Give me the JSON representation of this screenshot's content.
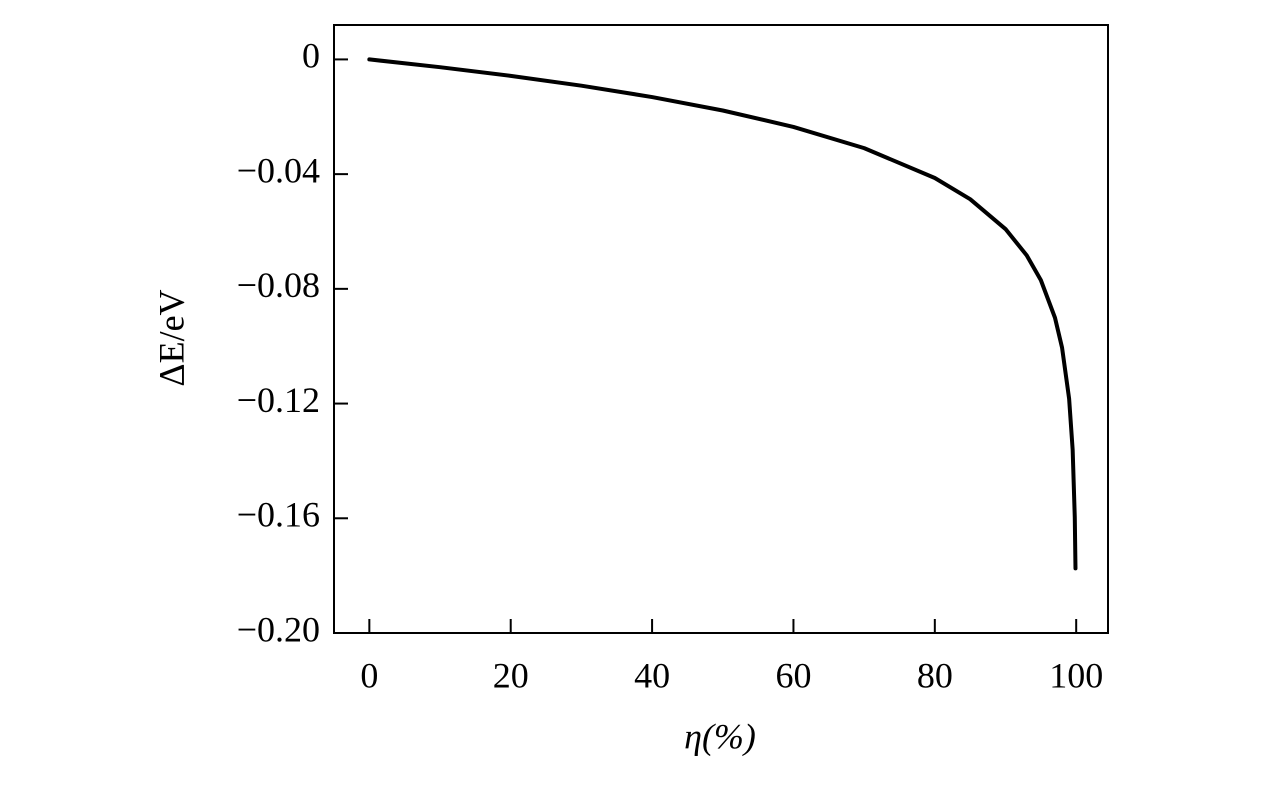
{
  "chart_data": {
    "type": "line",
    "xlabel": "η(%)",
    "ylabel": "ΔE/eV",
    "x": [
      0,
      10,
      20,
      30,
      40,
      50,
      60,
      70,
      80,
      85,
      90,
      93,
      95,
      97,
      98,
      99,
      99.5,
      99.8,
      99.9
    ],
    "series": [
      {
        "color": "#000000",
        "values": [
          0,
          -0.00271,
          -0.00573,
          -0.00916,
          -0.01312,
          -0.01781,
          -0.02354,
          -0.03093,
          -0.04135,
          -0.04874,
          -0.05915,
          -0.06832,
          -0.07696,
          -0.09008,
          -0.1005,
          -0.11831,
          -0.13611,
          -0.15965,
          -0.17746
        ]
      }
    ],
    "xlim": [
      -5,
      104.5
    ],
    "ylim": [
      -0.2,
      0.012
    ],
    "xticks": [
      0,
      20,
      40,
      60,
      80,
      100
    ],
    "yticks": [
      {
        "value": -0.2,
        "label": "−0.20"
      },
      {
        "value": -0.16,
        "label": "−0.16"
      },
      {
        "value": -0.12,
        "label": "−0.12"
      },
      {
        "value": -0.08,
        "label": "−0.08"
      },
      {
        "value": -0.04,
        "label": "−0.04"
      },
      0
    ]
  }
}
